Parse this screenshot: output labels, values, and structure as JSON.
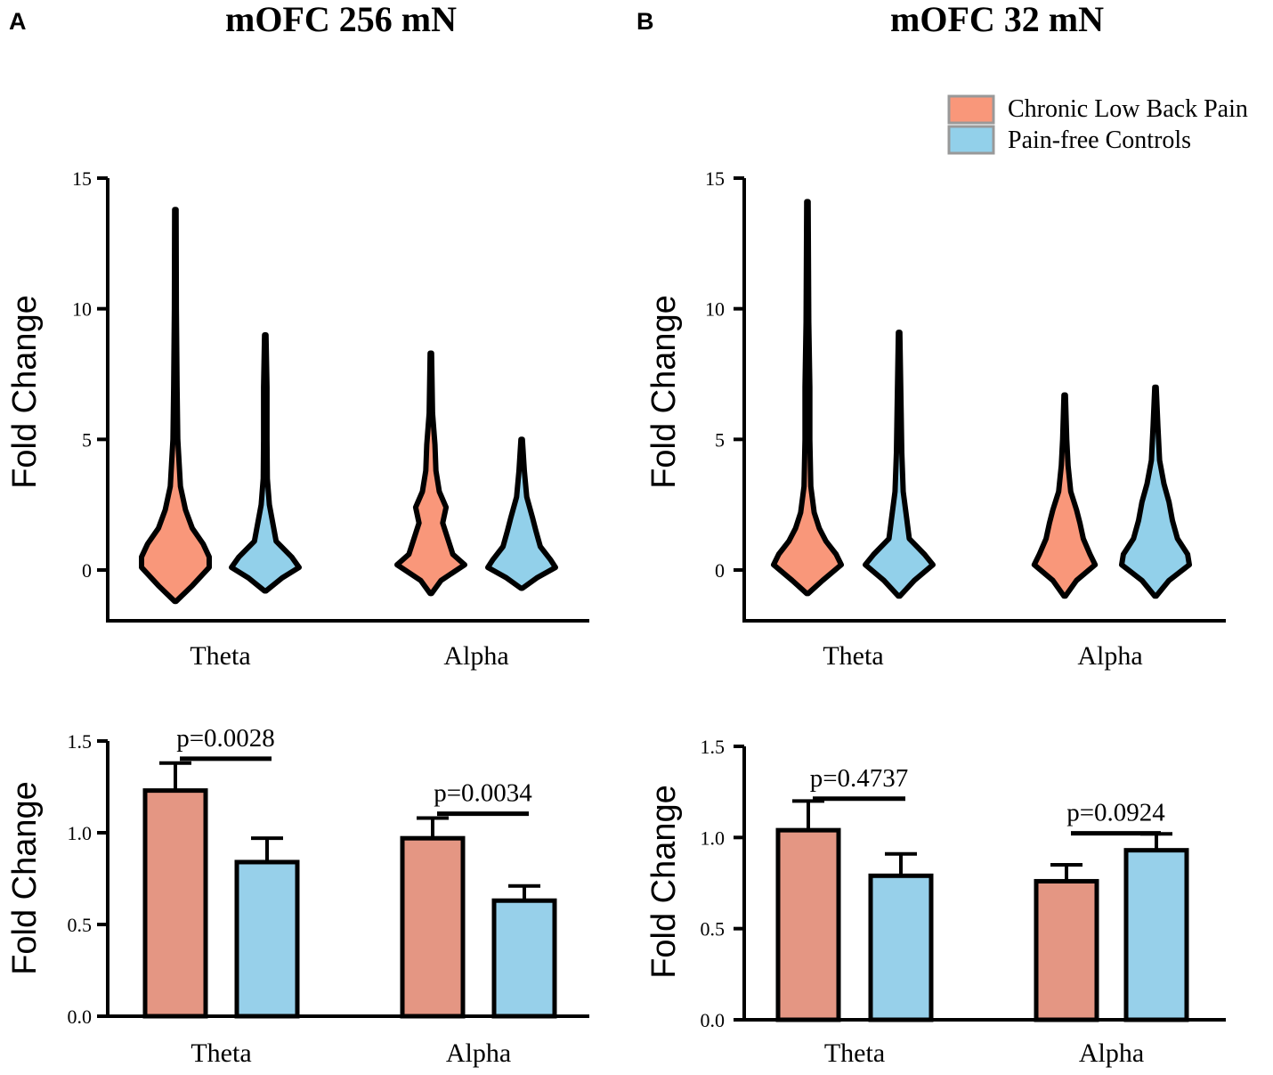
{
  "figure": {
    "panels": [
      {
        "letter": "A",
        "title": "mOFC 256 mN"
      },
      {
        "letter": "B",
        "title": "mOFC 32 mN"
      }
    ],
    "legend": [
      {
        "label": "Chronic Low Back Pain",
        "color": "#f9977a"
      },
      {
        "label": "Pain-free Controls",
        "color": "#92d0ea"
      }
    ]
  },
  "chart_data": [
    {
      "panel": "A",
      "type": "violin",
      "title": "mOFC 256 mN",
      "xlabel": "",
      "ylabel": "Fold Change",
      "ylim": [
        -2,
        15
      ],
      "yticks": [
        0,
        5,
        10,
        15
      ],
      "categories": [
        "Theta",
        "Alpha"
      ],
      "series": [
        {
          "name": "Chronic Low Back Pain",
          "color": "#f9977a",
          "violins": [
            {
              "category": "Theta",
              "min": -1.2,
              "max": 13.8,
              "profile": [
                [
                  -1.2,
                  0.02
                ],
                [
                  -0.6,
                  0.5
                ],
                [
                  0.1,
                  1.0
                ],
                [
                  0.5,
                  1.0
                ],
                [
                  1.0,
                  0.82
                ],
                [
                  1.6,
                  0.5
                ],
                [
                  2.3,
                  0.3
                ],
                [
                  3.2,
                  0.15
                ],
                [
                  5,
                  0.07
                ],
                [
                  7,
                  0.05
                ],
                [
                  10,
                  0.03
                ],
                [
                  13.8,
                  0.02
                ]
              ]
            },
            {
              "category": "Alpha",
              "min": -0.9,
              "max": 8.3,
              "profile": [
                [
                  -0.9,
                  0.02
                ],
                [
                  -0.4,
                  0.3
                ],
                [
                  0.2,
                  1.0
                ],
                [
                  0.6,
                  0.65
                ],
                [
                  1.2,
                  0.5
                ],
                [
                  1.8,
                  0.35
                ],
                [
                  2.4,
                  0.45
                ],
                [
                  3.0,
                  0.25
                ],
                [
                  3.8,
                  0.15
                ],
                [
                  4.8,
                  0.12
                ],
                [
                  6,
                  0.05
                ],
                [
                  8.3,
                  0.02
                ]
              ]
            }
          ]
        },
        {
          "name": "Pain-free Controls",
          "color": "#92d0ea",
          "violins": [
            {
              "category": "Theta",
              "min": -0.8,
              "max": 9.0,
              "profile": [
                [
                  -0.8,
                  0.02
                ],
                [
                  -0.3,
                  0.5
                ],
                [
                  0.1,
                  1.0
                ],
                [
                  0.5,
                  0.78
                ],
                [
                  1.1,
                  0.32
                ],
                [
                  1.8,
                  0.22
                ],
                [
                  2.5,
                  0.12
                ],
                [
                  3.5,
                  0.06
                ],
                [
                  5,
                  0.05
                ],
                [
                  7,
                  0.05
                ],
                [
                  9.0,
                  0.02
                ]
              ]
            },
            {
              "category": "Alpha",
              "min": -0.7,
              "max": 5.0,
              "profile": [
                [
                  -0.7,
                  0.02
                ],
                [
                  -0.3,
                  0.45
                ],
                [
                  0.1,
                  1.0
                ],
                [
                  0.4,
                  0.85
                ],
                [
                  0.9,
                  0.55
                ],
                [
                  1.5,
                  0.42
                ],
                [
                  2.0,
                  0.32
                ],
                [
                  2.8,
                  0.15
                ],
                [
                  3.8,
                  0.08
                ],
                [
                  5.0,
                  0.02
                ]
              ]
            }
          ]
        }
      ]
    },
    {
      "panel": "B",
      "type": "violin",
      "title": "mOFC 32 mN",
      "xlabel": "",
      "ylabel": "Fold Change",
      "ylim": [
        -2,
        15
      ],
      "yticks": [
        0,
        5,
        10,
        15
      ],
      "categories": [
        "Theta",
        "Alpha"
      ],
      "series": [
        {
          "name": "Chronic Low Back Pain",
          "color": "#f9977a",
          "violins": [
            {
              "category": "Theta",
              "min": -0.9,
              "max": 14.1,
              "profile": [
                [
                  -0.9,
                  0.02
                ],
                [
                  -0.4,
                  0.45
                ],
                [
                  0.2,
                  1.0
                ],
                [
                  0.6,
                  0.85
                ],
                [
                  1.1,
                  0.55
                ],
                [
                  1.6,
                  0.35
                ],
                [
                  2.2,
                  0.2
                ],
                [
                  3.2,
                  0.1
                ],
                [
                  5,
                  0.07
                ],
                [
                  7,
                  0.07
                ],
                [
                  9.5,
                  0.04
                ],
                [
                  14.1,
                  0.02
                ]
              ]
            },
            {
              "category": "Alpha",
              "min": -1.0,
              "max": 6.7,
              "profile": [
                [
                  -1.0,
                  0.02
                ],
                [
                  -0.4,
                  0.35
                ],
                [
                  0.2,
                  0.9
                ],
                [
                  0.6,
                  0.75
                ],
                [
                  1.2,
                  0.55
                ],
                [
                  1.8,
                  0.45
                ],
                [
                  2.3,
                  0.35
                ],
                [
                  3.0,
                  0.18
                ],
                [
                  4.0,
                  0.1
                ],
                [
                  5.0,
                  0.06
                ],
                [
                  6.7,
                  0.02
                ]
              ]
            }
          ]
        },
        {
          "name": "Pain-free Controls",
          "color": "#92d0ea",
          "violins": [
            {
              "category": "Theta",
              "min": -1.0,
              "max": 9.1,
              "profile": [
                [
                  -1.0,
                  0.02
                ],
                [
                  -0.4,
                  0.45
                ],
                [
                  0.2,
                  1.0
                ],
                [
                  0.6,
                  0.75
                ],
                [
                  1.2,
                  0.3
                ],
                [
                  2.0,
                  0.22
                ],
                [
                  3.0,
                  0.12
                ],
                [
                  4.5,
                  0.08
                ],
                [
                  6,
                  0.06
                ],
                [
                  9.1,
                  0.02
                ]
              ]
            },
            {
              "category": "Alpha",
              "min": -1.0,
              "max": 7.0,
              "profile": [
                [
                  -1.0,
                  0.02
                ],
                [
                  -0.4,
                  0.4
                ],
                [
                  0.2,
                  1.0
                ],
                [
                  0.6,
                  0.95
                ],
                [
                  1.2,
                  0.65
                ],
                [
                  1.9,
                  0.5
                ],
                [
                  2.6,
                  0.4
                ],
                [
                  3.3,
                  0.25
                ],
                [
                  4.2,
                  0.12
                ],
                [
                  5.5,
                  0.07
                ],
                [
                  7.0,
                  0.02
                ]
              ]
            }
          ]
        }
      ]
    },
    {
      "panel": "A",
      "type": "bar",
      "xlabel": "",
      "ylabel": "Fold Change",
      "ylim": [
        0,
        1.5
      ],
      "yticks": [
        "0.0",
        "0.5",
        "1.0",
        "1.5"
      ],
      "categories": [
        "Theta",
        "Alpha"
      ],
      "series": [
        {
          "name": "Chronic Low Back Pain",
          "color": "#e49683",
          "values": [
            1.23,
            0.97
          ],
          "errors": [
            0.15,
            0.11
          ]
        },
        {
          "name": "Pain-free Controls",
          "color": "#97d0ea",
          "values": [
            0.84,
            0.63
          ],
          "errors": [
            0.13,
            0.08
          ]
        }
      ],
      "annotations": [
        {
          "category": "Theta",
          "text": "p=0.0028",
          "y": 1.52
        },
        {
          "category": "Alpha",
          "text": "p=0.0034",
          "y": 1.22
        }
      ]
    },
    {
      "panel": "B",
      "type": "bar",
      "xlabel": "",
      "ylabel": "Fold Change",
      "ylim": [
        0,
        1.5
      ],
      "yticks": [
        "0.0",
        "0.5",
        "1.0",
        "1.5"
      ],
      "categories": [
        "Theta",
        "Alpha"
      ],
      "series": [
        {
          "name": "Chronic Low Back Pain",
          "color": "#e49683",
          "values": [
            1.04,
            0.76
          ],
          "errors": [
            0.16,
            0.09
          ]
        },
        {
          "name": "Pain-free Controls",
          "color": "#97d0ea",
          "values": [
            0.79,
            0.93
          ],
          "errors": [
            0.12,
            0.09
          ]
        }
      ],
      "annotations": [
        {
          "category": "Theta",
          "text": "p=0.4737",
          "y": 1.33
        },
        {
          "category": "Alpha",
          "text": "p=0.0924",
          "y": 1.14
        }
      ]
    }
  ]
}
